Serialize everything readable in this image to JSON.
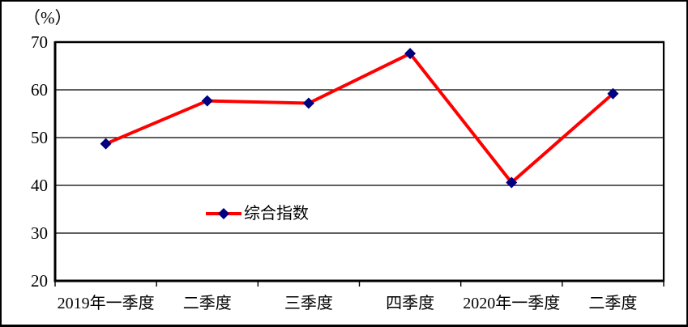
{
  "chart_data": {
    "type": "line",
    "title": "",
    "unit_label": "（%）",
    "categories": [
      "2019年一季度",
      "二季度",
      "三季度",
      "四季度",
      "2020年一季度",
      "二季度"
    ],
    "series": [
      {
        "name": "综合指数",
        "values": [
          48.7,
          57.7,
          57.2,
          67.6,
          40.6,
          59.2
        ]
      }
    ],
    "ylim": [
      20,
      70
    ],
    "yticks": [
      20,
      30,
      40,
      50,
      60,
      70
    ],
    "grid": true,
    "legend_position": "inside-center-left",
    "colors": {
      "line": "#FF0000",
      "marker": "#000080",
      "axis": "#000000",
      "gridline": "#000000",
      "text": "#000000",
      "background": "#FFFFFF"
    }
  }
}
